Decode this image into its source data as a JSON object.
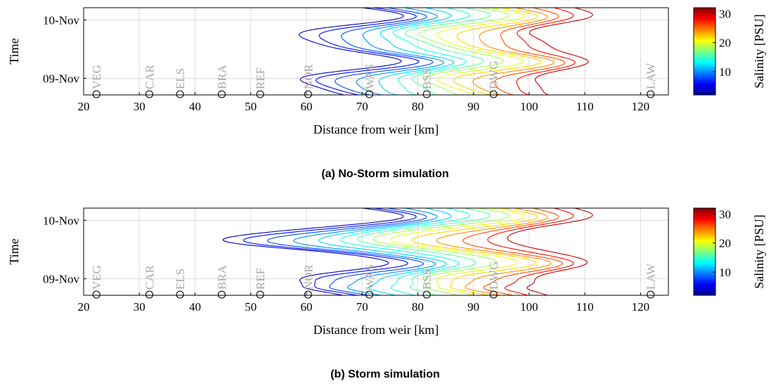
{
  "chart_data": [
    {
      "type": "contour",
      "caption": "(a) No-Storm simulation",
      "xlabel": "Distance from weir [km]",
      "ylabel": "Time",
      "xlim": [
        20,
        125
      ],
      "xticks": [
        "20",
        "30",
        "40",
        "50",
        "60",
        "70",
        "80",
        "90",
        "100",
        "110",
        "120"
      ],
      "yticks": [
        "09-Nov",
        "10-Nov"
      ],
      "colorbar": {
        "label": "Salinity [PSU]",
        "ticks": [
          "10",
          "20",
          "30"
        ],
        "range": [
          2,
          32
        ]
      },
      "contour_levels": [
        4,
        6,
        8,
        10,
        12,
        14,
        16,
        18,
        20,
        22,
        24,
        26,
        28,
        30
      ],
      "stations": [
        {
          "name": "VEG",
          "km": 22.3
        },
        {
          "name": "CAR",
          "km": 31.8
        },
        {
          "name": "ELS",
          "km": 37.3
        },
        {
          "name": "BRA",
          "km": 44.8
        },
        {
          "name": "REF",
          "km": 51.7
        },
        {
          "name": "NOR",
          "km": 60.3
        },
        {
          "name": "WAS",
          "km": 71.3
        },
        {
          "name": "BSS",
          "km": 81.6
        },
        {
          "name": "DWG",
          "km": 93.6
        },
        {
          "name": "LAW",
          "km": 121.8
        }
      ]
    },
    {
      "type": "contour",
      "caption": "(b) Storm simulation",
      "xlabel": "Distance from weir [km]",
      "ylabel": "Time",
      "xlim": [
        20,
        125
      ],
      "xticks": [
        "20",
        "30",
        "40",
        "50",
        "60",
        "70",
        "80",
        "90",
        "100",
        "110",
        "120"
      ],
      "yticks": [
        "09-Nov",
        "10-Nov"
      ],
      "colorbar": {
        "label": "Salinity [PSU]",
        "ticks": [
          "10",
          "20",
          "30"
        ],
        "range": [
          2,
          32
        ]
      },
      "contour_levels": [
        4,
        6,
        8,
        10,
        12,
        14,
        16,
        18,
        20,
        22,
        24,
        26,
        28,
        30
      ],
      "stations": [
        {
          "name": "VEG",
          "km": 22.3
        },
        {
          "name": "CAR",
          "km": 31.8
        },
        {
          "name": "ELS",
          "km": 37.3
        },
        {
          "name": "BRA",
          "km": 44.8
        },
        {
          "name": "REF",
          "km": 51.7
        },
        {
          "name": "NOR",
          "km": 60.3
        },
        {
          "name": "WAS",
          "km": 71.3
        },
        {
          "name": "BSS",
          "km": 81.6
        },
        {
          "name": "DWG",
          "km": 93.6
        },
        {
          "name": "LAW",
          "km": 121.8
        }
      ]
    }
  ]
}
